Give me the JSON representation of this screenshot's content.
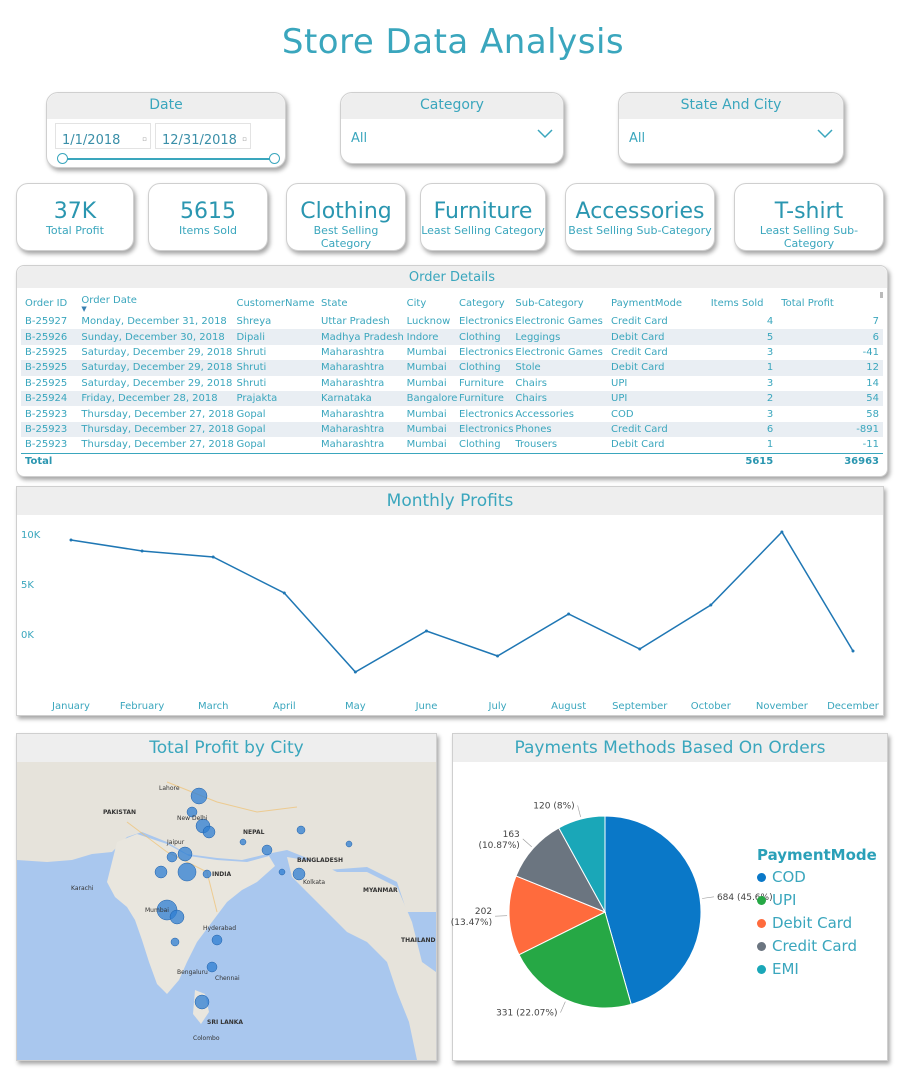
{
  "title": "Store Data Analysis",
  "slicers": {
    "date": {
      "label": "Date",
      "start": "1/1/2018",
      "end": "12/31/2018"
    },
    "category": {
      "label": "Category",
      "value": "All"
    },
    "state_city": {
      "label": "State And City",
      "value": "All"
    }
  },
  "kpis": [
    {
      "value": "37K",
      "label": "Total Profit"
    },
    {
      "value": "5615",
      "label": "Items Sold"
    },
    {
      "value": "Clothing",
      "label": "Best Selling Category"
    },
    {
      "value": "Furniture",
      "label": "Least Selling Category"
    },
    {
      "value": "Accessories",
      "label": "Best Selling Sub-Category"
    },
    {
      "value": "T-shirt",
      "label": "Least Selling Sub-Category"
    }
  ],
  "orders": {
    "title": "Order Details",
    "columns": [
      "Order ID",
      "Order Date",
      "CustomerName",
      "State",
      "City",
      "Category",
      "Sub-Category",
      "PaymentMode",
      "Items Sold",
      "Total Profit"
    ],
    "rows": [
      [
        "B-25927",
        "Monday, December 31, 2018",
        "Shreya",
        "Uttar Pradesh",
        "Lucknow",
        "Electronics",
        "Electronic Games",
        "Credit Card",
        "4",
        "7"
      ],
      [
        "B-25926",
        "Sunday, December 30, 2018",
        "Dipali",
        "Madhya Pradesh",
        "Indore",
        "Clothing",
        "Leggings",
        "Debit Card",
        "5",
        "6"
      ],
      [
        "B-25925",
        "Saturday, December 29, 2018",
        "Shruti",
        "Maharashtra",
        "Mumbai",
        "Electronics",
        "Electronic Games",
        "Credit Card",
        "3",
        "-41"
      ],
      [
        "B-25925",
        "Saturday, December 29, 2018",
        "Shruti",
        "Maharashtra",
        "Mumbai",
        "Clothing",
        "Stole",
        "Debit Card",
        "1",
        "12"
      ],
      [
        "B-25925",
        "Saturday, December 29, 2018",
        "Shruti",
        "Maharashtra",
        "Mumbai",
        "Furniture",
        "Chairs",
        "UPI",
        "3",
        "14"
      ],
      [
        "B-25924",
        "Friday, December 28, 2018",
        "Prajakta",
        "Karnataka",
        "Bangalore",
        "Furniture",
        "Chairs",
        "UPI",
        "2",
        "54"
      ],
      [
        "B-25923",
        "Thursday, December 27, 2018",
        "Gopal",
        "Maharashtra",
        "Mumbai",
        "Electronics",
        "Accessories",
        "COD",
        "3",
        "58"
      ],
      [
        "B-25923",
        "Thursday, December 27, 2018",
        "Gopal",
        "Maharashtra",
        "Mumbai",
        "Electronics",
        "Phones",
        "Credit Card",
        "6",
        "-891"
      ],
      [
        "B-25923",
        "Thursday, December 27, 2018",
        "Gopal",
        "Maharashtra",
        "Mumbai",
        "Clothing",
        "Trousers",
        "Debit Card",
        "1",
        "-11"
      ]
    ],
    "total": {
      "label": "Total",
      "items_sold": "5615",
      "total_profit": "36963"
    }
  },
  "chart_data": [
    {
      "type": "line",
      "title": "Monthly Profits",
      "categories": [
        "January",
        "February",
        "March",
        "April",
        "May",
        "June",
        "July",
        "August",
        "September",
        "October",
        "November",
        "December"
      ],
      "values": [
        9500,
        8400,
        7800,
        4200,
        -3700,
        400,
        -2100,
        2100,
        -1400,
        3000,
        10300,
        -1600
      ],
      "yticks": [
        "10K",
        "5K",
        "0K"
      ],
      "ytick_values": [
        10000,
        5000,
        0
      ],
      "ylim": [
        -4000,
        11000
      ],
      "color": "#1f77b4"
    },
    {
      "type": "pie",
      "title": "Payments Methods Based On Orders",
      "legend_title": "PaymentMode",
      "slices": [
        {
          "name": "COD",
          "value": 684,
          "label": "684 (45.6%)",
          "color": "#0a78c8"
        },
        {
          "name": "UPI",
          "value": 331,
          "label": "331 (22.07%)",
          "color": "#26a845"
        },
        {
          "name": "Debit Card",
          "value": 202,
          "label": "202 (13.47%)",
          "color": "#ff6b3d"
        },
        {
          "name": "Credit Card",
          "value": 163,
          "label": "163 (10.87%)",
          "color": "#6b7580"
        },
        {
          "name": "EMI",
          "value": 120,
          "label": "120 (8%)",
          "color": "#1aa7b8"
        }
      ],
      "legend": "right"
    }
  ],
  "map": {
    "title": "Total Profit by City",
    "labels": [
      "PAKISTAN",
      "New Delhi",
      "INDIA",
      "NEPAL",
      "BANGLADESH",
      "MYANMAR",
      "THAILAND",
      "SRI LANKA",
      "Mumbai",
      "Bengaluru",
      "Chennai",
      "Kolkata",
      "Jaipur",
      "Lahore",
      "Karachi",
      "Colombo",
      "Hyderabad"
    ]
  }
}
